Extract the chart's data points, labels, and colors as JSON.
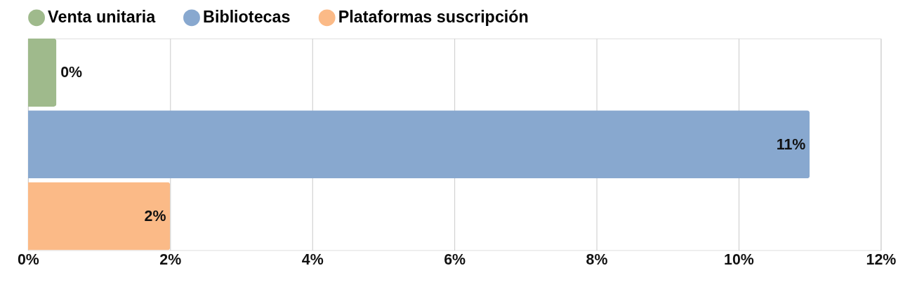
{
  "chart_data": {
    "type": "bar",
    "orientation": "horizontal",
    "categories": [
      null,
      null,
      null
    ],
    "series": [
      {
        "name": "Venta unitaria",
        "color": "#9fba8c",
        "values": [
          0.4,
          null,
          null
        ],
        "value_labels": [
          "0%",
          null,
          null
        ]
      },
      {
        "name": "Bibliotecas",
        "color": "#88a8cf",
        "values": [
          null,
          11,
          null
        ],
        "value_labels": [
          null,
          "11%",
          null
        ]
      },
      {
        "name": "Plataformas suscripción",
        "color": "#fbba87",
        "values": [
          null,
          null,
          2
        ],
        "value_labels": [
          null,
          null,
          "2%"
        ]
      }
    ],
    "xlim": [
      0,
      12
    ],
    "xticks": [
      {
        "value": 0,
        "label": "0%"
      },
      {
        "value": 2,
        "label": "2%"
      },
      {
        "value": 4,
        "label": "4%"
      },
      {
        "value": 6,
        "label": "6%"
      },
      {
        "value": 8,
        "label": "8%"
      },
      {
        "value": 10,
        "label": "10%"
      },
      {
        "value": 12,
        "label": "12%"
      }
    ],
    "grid": "x",
    "legend": "top"
  }
}
